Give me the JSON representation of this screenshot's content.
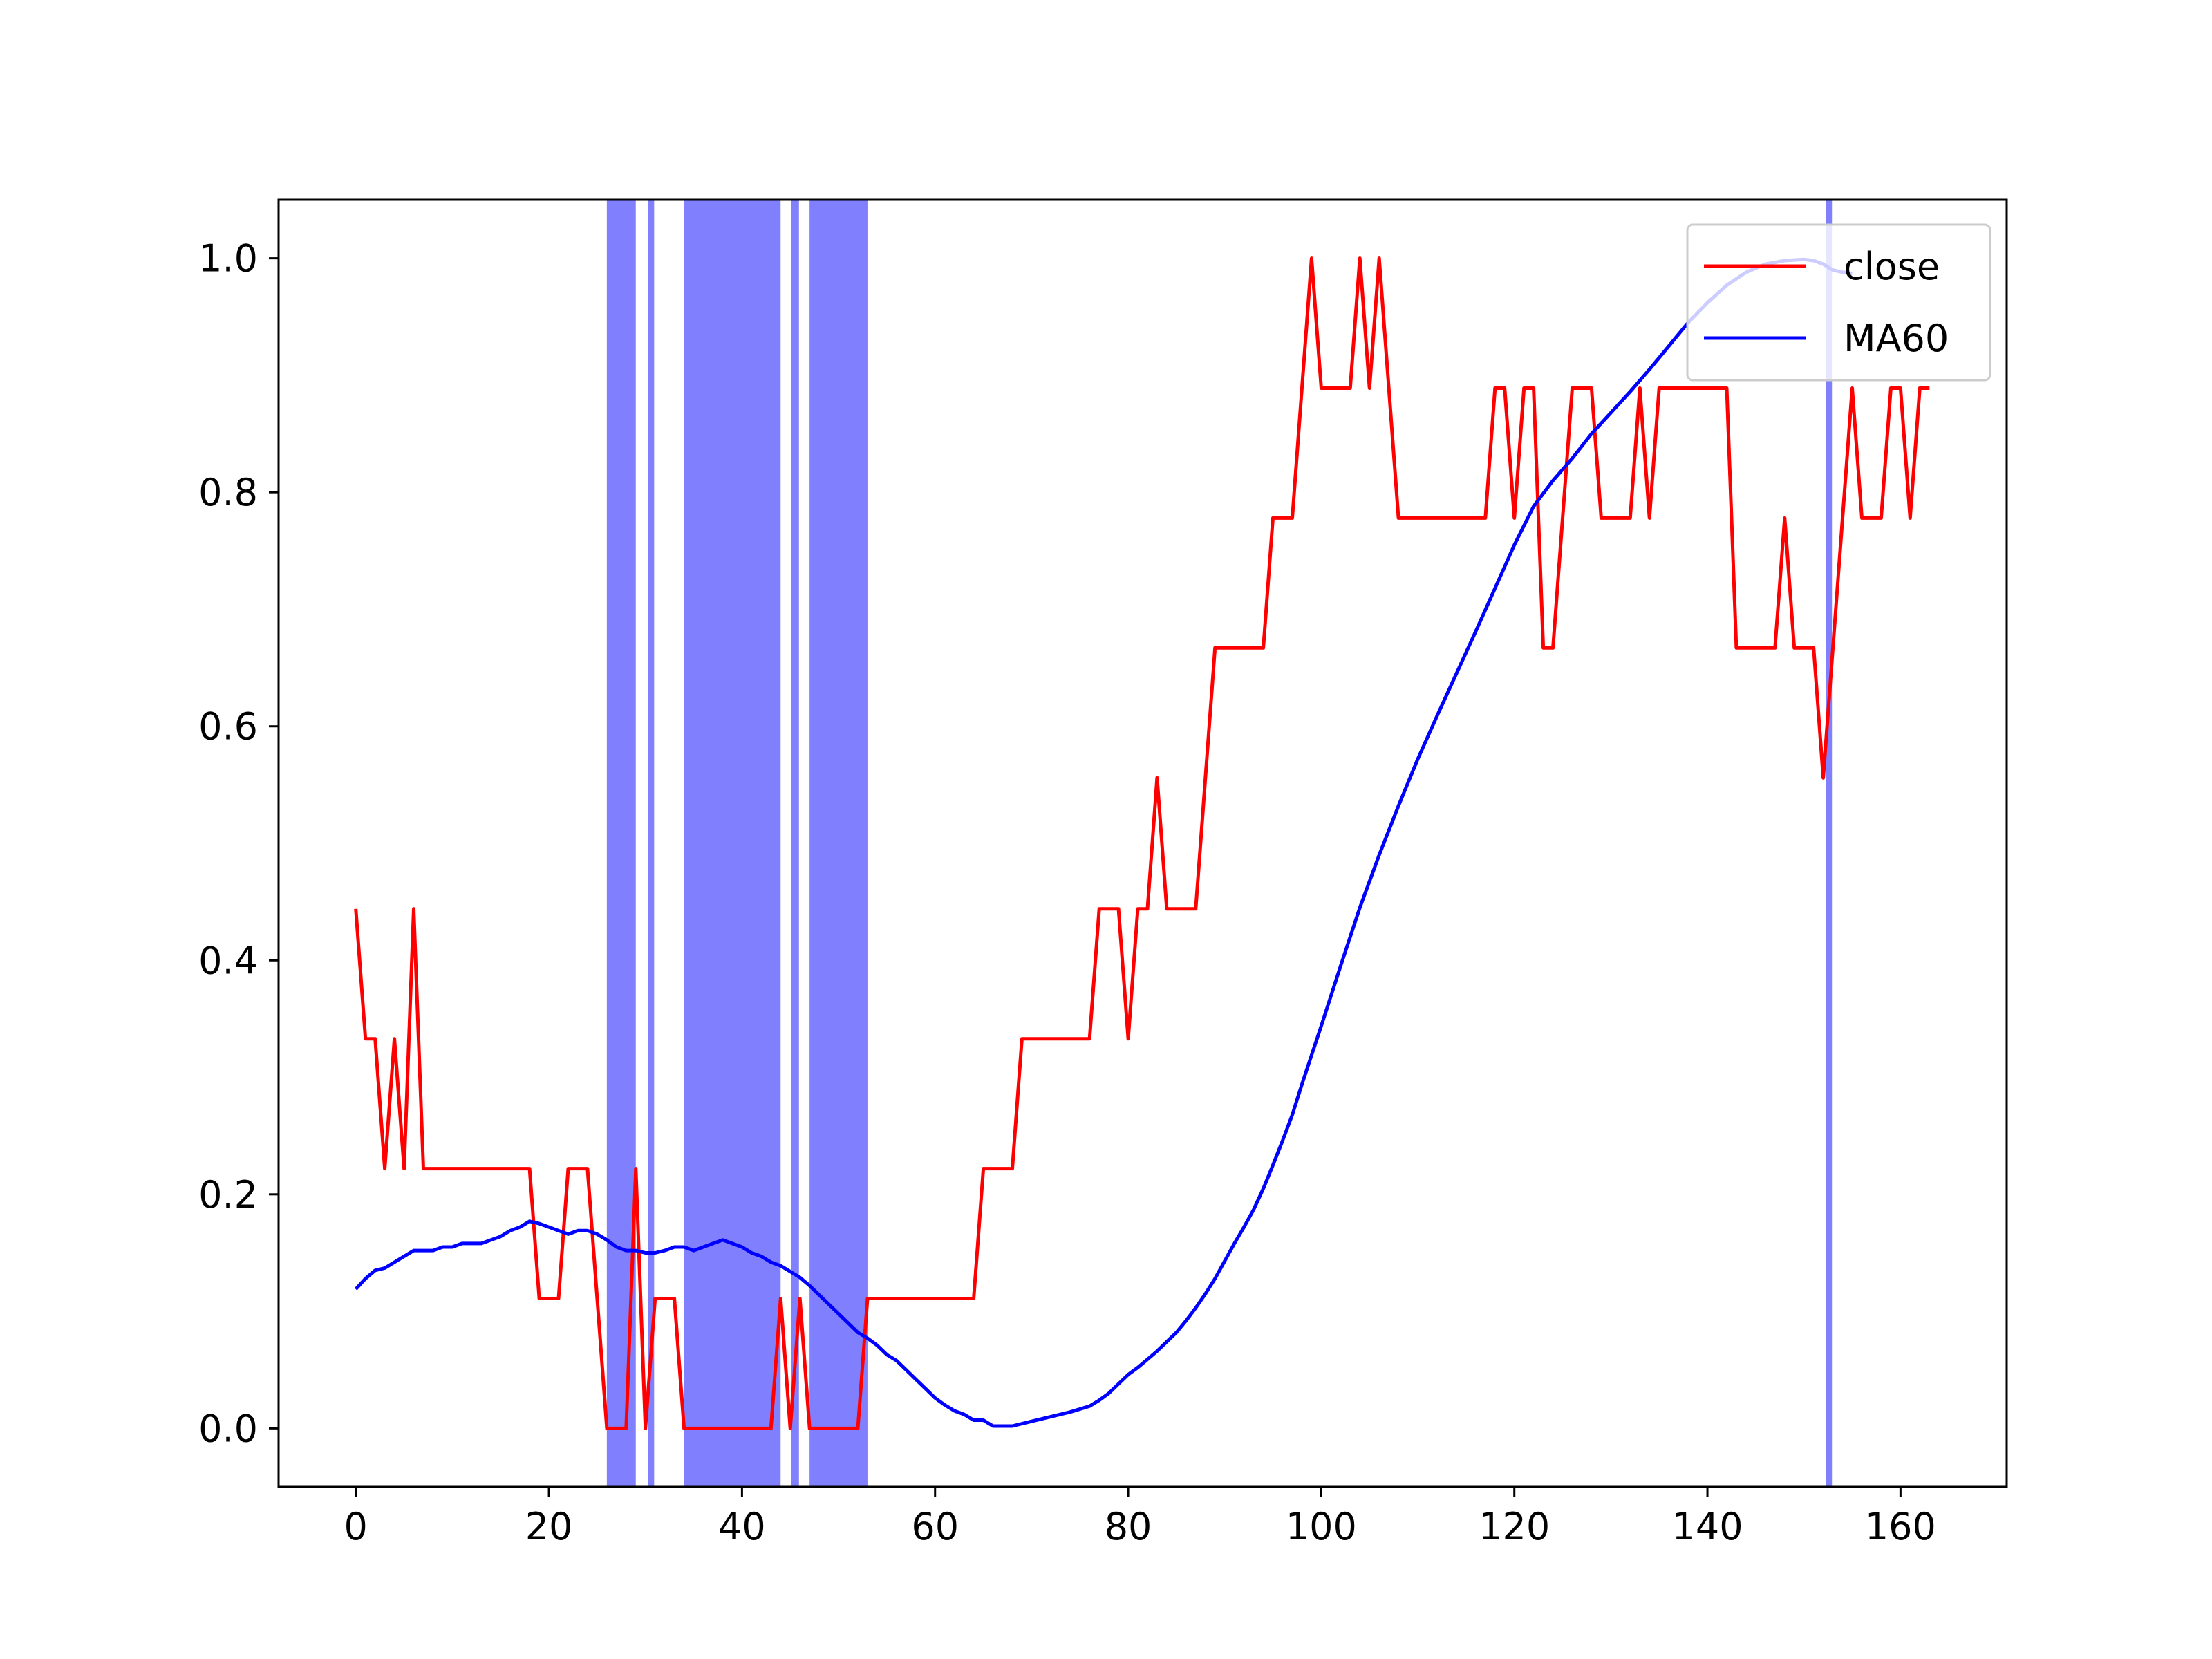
{
  "chart_data": {
    "type": "line",
    "title": "",
    "xlabel": "",
    "ylabel": "",
    "xlim": [
      -8,
      171
    ],
    "ylim": [
      -0.05,
      1.05
    ],
    "grid": false,
    "legend_position": "top-right",
    "x_ticks": [
      0,
      20,
      40,
      60,
      80,
      100,
      120,
      140,
      160
    ],
    "y_ticks": [
      0.0,
      0.2,
      0.4,
      0.6,
      0.8,
      1.0
    ],
    "x_tick_labels": [
      "0",
      "20",
      "40",
      "60",
      "80",
      "100",
      "120",
      "140",
      "160"
    ],
    "y_tick_labels": [
      "0.0",
      "0.2",
      "0.4",
      "0.6",
      "0.8",
      "1.0"
    ],
    "colors": {
      "close": "#ff0000",
      "MA60": "#0000ff",
      "span": "#8080ff"
    },
    "highlight_spans": [
      [
        26,
        29
      ],
      [
        30.3,
        30.9
      ],
      [
        34,
        44
      ],
      [
        45.1,
        45.9
      ],
      [
        47,
        53
      ],
      [
        152.3,
        152.9
      ]
    ],
    "series": [
      {
        "name": "close",
        "points": [
          [
            0,
            0.444
          ],
          [
            1,
            0.333
          ],
          [
            2,
            0.333
          ],
          [
            3,
            0.222
          ],
          [
            4,
            0.333
          ],
          [
            5,
            0.222
          ],
          [
            6,
            0.444
          ],
          [
            7,
            0.222
          ],
          [
            18,
            0.222
          ],
          [
            19,
            0.111
          ],
          [
            21,
            0.111
          ],
          [
            22,
            0.222
          ],
          [
            24,
            0.222
          ],
          [
            26,
            0.0
          ],
          [
            28,
            0.0
          ],
          [
            29,
            0.222
          ],
          [
            30,
            0.0
          ],
          [
            31,
            0.111
          ],
          [
            33,
            0.111
          ],
          [
            34,
            0.0
          ],
          [
            43,
            0.0
          ],
          [
            44,
            0.111
          ],
          [
            45,
            0.0
          ],
          [
            46,
            0.111
          ],
          [
            47,
            0.0
          ],
          [
            52,
            0.0
          ],
          [
            53,
            0.111
          ],
          [
            64,
            0.111
          ],
          [
            65,
            0.222
          ],
          [
            68,
            0.222
          ],
          [
            69,
            0.333
          ],
          [
            76,
            0.333
          ],
          [
            77,
            0.444
          ],
          [
            79,
            0.444
          ],
          [
            80,
            0.333
          ],
          [
            81,
            0.444
          ],
          [
            82,
            0.444
          ],
          [
            83,
            0.556
          ],
          [
            84,
            0.444
          ],
          [
            87,
            0.444
          ],
          [
            89,
            0.667
          ],
          [
            94,
            0.667
          ],
          [
            95,
            0.778
          ],
          [
            97,
            0.778
          ],
          [
            99,
            1.0
          ],
          [
            100,
            0.889
          ],
          [
            103,
            0.889
          ],
          [
            104,
            1.0
          ],
          [
            105,
            0.889
          ],
          [
            106,
            1.0
          ],
          [
            108,
            0.778
          ],
          [
            117,
            0.778
          ],
          [
            118,
            0.889
          ],
          [
            119,
            0.889
          ],
          [
            120,
            0.778
          ],
          [
            121,
            0.889
          ],
          [
            122,
            0.889
          ],
          [
            123,
            0.667
          ],
          [
            124,
            0.667
          ],
          [
            126,
            0.889
          ],
          [
            128,
            0.889
          ],
          [
            129,
            0.778
          ],
          [
            132,
            0.778
          ],
          [
            133,
            0.889
          ],
          [
            134,
            0.778
          ],
          [
            135,
            0.889
          ],
          [
            142,
            0.889
          ],
          [
            143,
            0.667
          ],
          [
            147,
            0.667
          ],
          [
            148,
            0.778
          ],
          [
            149,
            0.667
          ],
          [
            151,
            0.667
          ],
          [
            152,
            0.556
          ],
          [
            155,
            0.889
          ],
          [
            156,
            0.778
          ],
          [
            158,
            0.778
          ],
          [
            159,
            0.889
          ],
          [
            160,
            0.889
          ],
          [
            161,
            0.778
          ],
          [
            162,
            0.889
          ],
          [
            163,
            0.889
          ]
        ]
      },
      {
        "name": "MA60",
        "points": [
          [
            0,
            0.119
          ],
          [
            1,
            0.128
          ],
          [
            2,
            0.135
          ],
          [
            3,
            0.137
          ],
          [
            4,
            0.142
          ],
          [
            5,
            0.147
          ],
          [
            6,
            0.152
          ],
          [
            7,
            0.152
          ],
          [
            8,
            0.152
          ],
          [
            9,
            0.155
          ],
          [
            10,
            0.155
          ],
          [
            11,
            0.158
          ],
          [
            12,
            0.158
          ],
          [
            13,
            0.158
          ],
          [
            14,
            0.161
          ],
          [
            15,
            0.164
          ],
          [
            16,
            0.169
          ],
          [
            17,
            0.172
          ],
          [
            18,
            0.177
          ],
          [
            19,
            0.175
          ],
          [
            20,
            0.172
          ],
          [
            21,
            0.169
          ],
          [
            22,
            0.166
          ],
          [
            23,
            0.169
          ],
          [
            24,
            0.169
          ],
          [
            25,
            0.166
          ],
          [
            26,
            0.161
          ],
          [
            27,
            0.155
          ],
          [
            28,
            0.152
          ],
          [
            29,
            0.152
          ],
          [
            30,
            0.15
          ],
          [
            31,
            0.15
          ],
          [
            32,
            0.152
          ],
          [
            33,
            0.155
          ],
          [
            34,
            0.155
          ],
          [
            35,
            0.152
          ],
          [
            36,
            0.155
          ],
          [
            37,
            0.158
          ],
          [
            38,
            0.161
          ],
          [
            39,
            0.158
          ],
          [
            40,
            0.155
          ],
          [
            41,
            0.15
          ],
          [
            42,
            0.147
          ],
          [
            43,
            0.142
          ],
          [
            44,
            0.139
          ],
          [
            45,
            0.134
          ],
          [
            46,
            0.129
          ],
          [
            47,
            0.122
          ],
          [
            48,
            0.114
          ],
          [
            49,
            0.106
          ],
          [
            50,
            0.098
          ],
          [
            51,
            0.09
          ],
          [
            52,
            0.082
          ],
          [
            53,
            0.077
          ],
          [
            54,
            0.071
          ],
          [
            55,
            0.063
          ],
          [
            56,
            0.058
          ],
          [
            57,
            0.05
          ],
          [
            58,
            0.042
          ],
          [
            59,
            0.034
          ],
          [
            60,
            0.026
          ],
          [
            61,
            0.02
          ],
          [
            62,
            0.015
          ],
          [
            63,
            0.012
          ],
          [
            64,
            0.007
          ],
          [
            65,
            0.007
          ],
          [
            66,
            0.002
          ],
          [
            67,
            0.002
          ],
          [
            68,
            0.002
          ],
          [
            70,
            0.006
          ],
          [
            72,
            0.01
          ],
          [
            74,
            0.014
          ],
          [
            76,
            0.019
          ],
          [
            77,
            0.024
          ],
          [
            78,
            0.03
          ],
          [
            79,
            0.038
          ],
          [
            80,
            0.046
          ],
          [
            81,
            0.052
          ],
          [
            82,
            0.059
          ],
          [
            83,
            0.066
          ],
          [
            84,
            0.074
          ],
          [
            85,
            0.082
          ],
          [
            86,
            0.092
          ],
          [
            87,
            0.103
          ],
          [
            88,
            0.115
          ],
          [
            89,
            0.128
          ],
          [
            90,
            0.143
          ],
          [
            91,
            0.158
          ],
          [
            92,
            0.172
          ],
          [
            93,
            0.187
          ],
          [
            94,
            0.205
          ],
          [
            95,
            0.225
          ],
          [
            96,
            0.246
          ],
          [
            97,
            0.268
          ],
          [
            98,
            0.294
          ],
          [
            99,
            0.319
          ],
          [
            100,
            0.344
          ],
          [
            102,
            0.395
          ],
          [
            104,
            0.445
          ],
          [
            106,
            0.49
          ],
          [
            108,
            0.532
          ],
          [
            110,
            0.572
          ],
          [
            112,
            0.609
          ],
          [
            114,
            0.645
          ],
          [
            116,
            0.681
          ],
          [
            118,
            0.718
          ],
          [
            120,
            0.755
          ],
          [
            122,
            0.788
          ],
          [
            124,
            0.81
          ],
          [
            126,
            0.829
          ],
          [
            128,
            0.85
          ],
          [
            130,
            0.868
          ],
          [
            132,
            0.886
          ],
          [
            134,
            0.905
          ],
          [
            136,
            0.925
          ],
          [
            138,
            0.945
          ],
          [
            140,
            0.962
          ],
          [
            142,
            0.977
          ],
          [
            144,
            0.988
          ],
          [
            146,
            0.995
          ],
          [
            148,
            0.998
          ],
          [
            150,
            0.999
          ],
          [
            151,
            0.998
          ],
          [
            152,
            0.995
          ],
          [
            153,
            0.99
          ],
          [
            154,
            0.988
          ],
          [
            155,
            0.987
          ]
        ]
      }
    ]
  }
}
